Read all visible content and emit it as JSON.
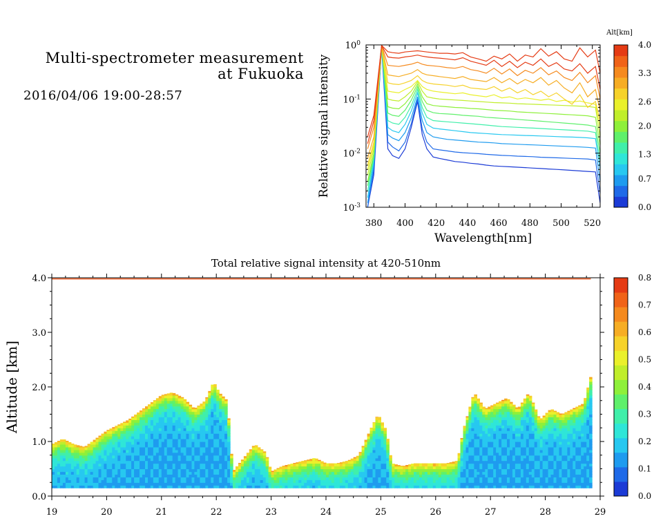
{
  "header": {
    "title_line1": "Multi-spectrometer measurement",
    "title_line2": "at Fukuoka",
    "subtitle": "2016/04/06 19:00-28:57"
  },
  "colors": {
    "scale": [
      "#1b3bd6",
      "#1f6ae8",
      "#1e9bef",
      "#27c8f0",
      "#2fe6d8",
      "#40efaa",
      "#5ff06b",
      "#8ef03a",
      "#c0ee2b",
      "#eaf02b",
      "#f6d22a",
      "#f6ad24",
      "#f58a1e",
      "#f06318",
      "#e53b14"
    ]
  },
  "chart_data": [
    {
      "id": "spectra",
      "type": "line",
      "xlabel": "Wavelength[nm]",
      "ylabel": "Relative signal intensity",
      "xlim": [
        375,
        525
      ],
      "ylim_log10": [
        -3,
        0
      ],
      "xticks": [
        "380",
        "400",
        "420",
        "440",
        "460",
        "480",
        "500",
        "520"
      ],
      "yticks": [
        "10-3",
        "10-2",
        "10-1",
        "100"
      ],
      "colorbar": {
        "label": "Alt[km]",
        "ticks": [
          "0.0",
          "0.7",
          "1.3",
          "2.0",
          "2.6",
          "3.3",
          "4.0"
        ],
        "range": [
          0,
          4
        ]
      },
      "x": [
        376,
        380,
        385,
        389,
        392,
        396,
        400,
        404,
        408,
        411,
        414,
        418,
        422,
        427,
        432,
        437,
        442,
        447,
        452,
        457,
        462,
        467,
        472,
        477,
        482,
        487,
        492,
        497,
        502,
        507,
        512,
        517,
        522,
        525
      ],
      "series": [
        {
          "alt": 0.15,
          "values": [
            0.0008,
            0.004,
            0.9,
            0.012,
            0.009,
            0.008,
            0.012,
            0.03,
            0.09,
            0.022,
            0.012,
            0.0085,
            0.008,
            0.0075,
            0.007,
            0.0068,
            0.0065,
            0.0063,
            0.006,
            0.0058,
            0.0057,
            0.0056,
            0.0055,
            0.0054,
            0.0053,
            0.0052,
            0.0051,
            0.005,
            0.0049,
            0.0048,
            0.0047,
            0.0046,
            0.0045,
            0.0012
          ]
        },
        {
          "alt": 0.45,
          "values": [
            0.001,
            0.005,
            0.95,
            0.016,
            0.013,
            0.011,
            0.016,
            0.035,
            0.1,
            0.028,
            0.016,
            0.012,
            0.0115,
            0.011,
            0.0105,
            0.0102,
            0.01,
            0.0098,
            0.0095,
            0.0093,
            0.0091,
            0.009,
            0.0088,
            0.0087,
            0.0086,
            0.0084,
            0.0083,
            0.0082,
            0.0081,
            0.008,
            0.0079,
            0.0078,
            0.0075,
            0.0018
          ]
        },
        {
          "alt": 0.75,
          "values": [
            0.0012,
            0.006,
            0.95,
            0.022,
            0.019,
            0.017,
            0.024,
            0.045,
            0.11,
            0.04,
            0.024,
            0.02,
            0.019,
            0.018,
            0.0175,
            0.017,
            0.0165,
            0.016,
            0.0158,
            0.0155,
            0.015,
            0.0148,
            0.0146,
            0.0144,
            0.0142,
            0.014,
            0.0138,
            0.0136,
            0.0134,
            0.0132,
            0.013,
            0.0128,
            0.0124,
            0.003
          ]
        },
        {
          "alt": 1.05,
          "values": [
            0.0015,
            0.007,
            0.95,
            0.03,
            0.026,
            0.024,
            0.034,
            0.06,
            0.13,
            0.055,
            0.034,
            0.029,
            0.028,
            0.027,
            0.026,
            0.025,
            0.024,
            0.0235,
            0.023,
            0.0225,
            0.022,
            0.0218,
            0.0215,
            0.0212,
            0.021,
            0.0208,
            0.0205,
            0.0202,
            0.02,
            0.0198,
            0.0195,
            0.0192,
            0.0185,
            0.005
          ]
        },
        {
          "alt": 1.35,
          "values": [
            0.002,
            0.008,
            0.95,
            0.04,
            0.036,
            0.034,
            0.046,
            0.075,
            0.15,
            0.07,
            0.046,
            0.04,
            0.039,
            0.038,
            0.037,
            0.036,
            0.035,
            0.034,
            0.033,
            0.032,
            0.031,
            0.0305,
            0.03,
            0.0295,
            0.029,
            0.0285,
            0.028,
            0.0275,
            0.027,
            0.0265,
            0.026,
            0.0255,
            0.024,
            0.007
          ]
        },
        {
          "alt": 1.65,
          "values": [
            0.0025,
            0.009,
            0.95,
            0.055,
            0.05,
            0.048,
            0.062,
            0.095,
            0.17,
            0.09,
            0.062,
            0.056,
            0.054,
            0.053,
            0.052,
            0.05,
            0.049,
            0.048,
            0.046,
            0.045,
            0.044,
            0.043,
            0.042,
            0.041,
            0.04,
            0.039,
            0.038,
            0.037,
            0.036,
            0.035,
            0.034,
            0.033,
            0.031,
            0.01
          ]
        },
        {
          "alt": 1.95,
          "values": [
            0.003,
            0.01,
            0.95,
            0.072,
            0.068,
            0.066,
            0.082,
            0.115,
            0.19,
            0.11,
            0.082,
            0.076,
            0.074,
            0.072,
            0.07,
            0.069,
            0.067,
            0.066,
            0.064,
            0.062,
            0.061,
            0.06,
            0.058,
            0.057,
            0.056,
            0.055,
            0.054,
            0.053,
            0.052,
            0.051,
            0.05,
            0.049,
            0.046,
            0.014
          ]
        },
        {
          "alt": 2.25,
          "values": [
            0.004,
            0.012,
            0.95,
            0.1,
            0.095,
            0.092,
            0.11,
            0.14,
            0.21,
            0.14,
            0.11,
            0.104,
            0.1,
            0.098,
            0.096,
            0.094,
            0.092,
            0.09,
            0.088,
            0.086,
            0.085,
            0.084,
            0.082,
            0.081,
            0.08,
            0.079,
            0.078,
            0.077,
            0.076,
            0.075,
            0.074,
            0.073,
            0.07,
            0.02
          ]
        },
        {
          "alt": 2.55,
          "values": [
            0.005,
            0.014,
            0.96,
            0.14,
            0.135,
            0.13,
            0.15,
            0.17,
            0.22,
            0.17,
            0.15,
            0.14,
            0.135,
            0.13,
            0.125,
            0.13,
            0.12,
            0.115,
            0.11,
            0.12,
            0.105,
            0.11,
            0.1,
            0.105,
            0.1,
            0.095,
            0.1,
            0.09,
            0.095,
            0.088,
            0.092,
            0.085,
            0.08,
            0.03
          ]
        },
        {
          "alt": 2.85,
          "values": [
            0.006,
            0.016,
            0.96,
            0.2,
            0.19,
            0.185,
            0.2,
            0.22,
            0.27,
            0.22,
            0.2,
            0.19,
            0.185,
            0.18,
            0.17,
            0.18,
            0.16,
            0.155,
            0.15,
            0.17,
            0.14,
            0.16,
            0.13,
            0.15,
            0.12,
            0.14,
            0.11,
            0.13,
            0.1,
            0.08,
            0.12,
            0.07,
            0.09,
            0.04
          ]
        },
        {
          "alt": 3.15,
          "values": [
            0.008,
            0.02,
            0.96,
            0.28,
            0.27,
            0.26,
            0.28,
            0.3,
            0.35,
            0.3,
            0.28,
            0.27,
            0.26,
            0.25,
            0.24,
            0.26,
            0.23,
            0.22,
            0.21,
            0.25,
            0.2,
            0.24,
            0.19,
            0.23,
            0.2,
            0.25,
            0.18,
            0.22,
            0.16,
            0.13,
            0.2,
            0.11,
            0.15,
            0.06
          ]
        },
        {
          "alt": 3.45,
          "values": [
            0.012,
            0.03,
            0.97,
            0.42,
            0.41,
            0.4,
            0.42,
            0.44,
            0.48,
            0.44,
            0.42,
            0.41,
            0.4,
            0.38,
            0.37,
            0.4,
            0.35,
            0.33,
            0.3,
            0.37,
            0.29,
            0.36,
            0.27,
            0.34,
            0.3,
            0.38,
            0.28,
            0.33,
            0.25,
            0.22,
            0.31,
            0.2,
            0.27,
            0.1
          ]
        },
        {
          "alt": 3.75,
          "values": [
            0.015,
            0.04,
            0.97,
            0.6,
            0.58,
            0.57,
            0.6,
            0.62,
            0.65,
            0.62,
            0.6,
            0.58,
            0.57,
            0.55,
            0.53,
            0.58,
            0.5,
            0.46,
            0.42,
            0.52,
            0.4,
            0.5,
            0.38,
            0.48,
            0.42,
            0.55,
            0.4,
            0.47,
            0.36,
            0.33,
            0.45,
            0.3,
            0.4,
            0.15
          ]
        },
        {
          "alt": 3.95,
          "values": [
            0.02,
            0.05,
            0.98,
            0.75,
            0.72,
            0.7,
            0.74,
            0.76,
            0.78,
            0.76,
            0.74,
            0.72,
            0.7,
            0.7,
            0.68,
            0.72,
            0.6,
            0.55,
            0.5,
            0.62,
            0.55,
            0.68,
            0.5,
            0.65,
            0.6,
            0.85,
            0.62,
            0.75,
            0.55,
            0.5,
            0.88,
            0.6,
            0.8,
            0.3
          ]
        }
      ]
    },
    {
      "id": "time_height",
      "type": "heatmap",
      "title": "Total relative signal intensity at 420-510nm",
      "ylabel": "Altitude [km]",
      "xlim": [
        19,
        29
      ],
      "ylim": [
        0,
        4
      ],
      "xticks": [
        "19",
        "20",
        "21",
        "22",
        "23",
        "24",
        "25",
        "26",
        "27",
        "28",
        "29"
      ],
      "yticks": [
        "0.0",
        "1.0",
        "2.0",
        "3.0",
        "4.0"
      ],
      "colorbar": {
        "ticks": [
          "0.0",
          "0.1",
          "0.2",
          "0.3",
          "0.4",
          "0.5",
          "0.6",
          "0.7",
          "0.8"
        ],
        "range": [
          0,
          0.8
        ]
      },
      "data_start": 19.0,
      "data_end": 28.83,
      "min_altitude": 0.15,
      "cloud_base_time": [
        19.0,
        19.2,
        19.4,
        19.6,
        19.8,
        20.0,
        20.2,
        20.4,
        20.6,
        20.8,
        21.0,
        21.2,
        21.4,
        21.6,
        21.8,
        21.95,
        22.05,
        22.2,
        22.3,
        22.5,
        22.7,
        22.9,
        23.0,
        23.2,
        23.4,
        23.6,
        23.8,
        24.0,
        24.2,
        24.4,
        24.6,
        24.8,
        24.95,
        25.1,
        25.2,
        25.4,
        25.6,
        25.8,
        26.0,
        26.2,
        26.4,
        26.5,
        26.7,
        26.9,
        27.1,
        27.3,
        27.5,
        27.7,
        27.9,
        28.1,
        28.3,
        28.5,
        28.7,
        28.83
      ],
      "cloud_base_alt": [
        0.95,
        1.05,
        0.95,
        0.9,
        1.05,
        1.2,
        1.3,
        1.4,
        1.55,
        1.7,
        1.85,
        1.9,
        1.8,
        1.6,
        1.75,
        2.1,
        1.9,
        1.75,
        0.45,
        0.7,
        0.95,
        0.8,
        0.45,
        0.55,
        0.6,
        0.65,
        0.7,
        0.6,
        0.6,
        0.65,
        0.75,
        1.2,
        1.5,
        1.2,
        0.6,
        0.55,
        0.6,
        0.6,
        0.6,
        0.6,
        0.65,
        1.2,
        1.9,
        1.6,
        1.7,
        1.8,
        1.6,
        1.9,
        1.4,
        1.6,
        1.5,
        1.6,
        1.7,
        2.2
      ]
    }
  ]
}
